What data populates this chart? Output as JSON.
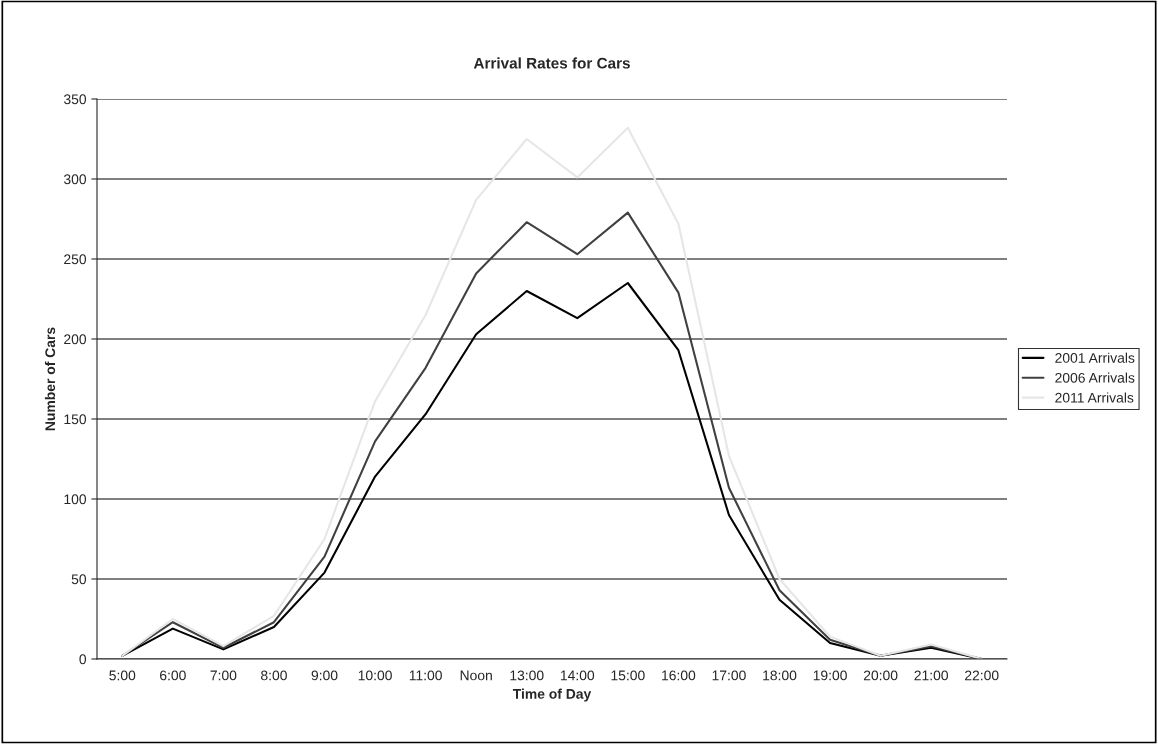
{
  "chart_data": {
    "type": "line",
    "title": "Arrival Rates for Cars",
    "xlabel": "Time of Day",
    "ylabel": "Number of Cars",
    "categories": [
      "5:00",
      "6:00",
      "7:00",
      "8:00",
      "9:00",
      "10:00",
      "11:00",
      "Noon",
      "13:00",
      "14:00",
      "15:00",
      "16:00",
      "17:00",
      "18:00",
      "19:00",
      "20:00",
      "21:00",
      "22:00"
    ],
    "series": [
      {
        "name": "2001 Arrivals",
        "color": "#000000",
        "values": [
          2,
          19,
          6,
          20,
          54,
          114,
          153,
          203,
          230,
          213,
          235,
          193,
          90,
          37,
          10,
          2,
          7,
          0
        ]
      },
      {
        "name": "2006 Arrivals",
        "color": "#404040",
        "values": [
          2,
          23,
          7,
          23,
          64,
          136,
          182,
          241,
          273,
          253,
          279,
          229,
          107,
          43,
          12,
          2,
          8,
          0
        ]
      },
      {
        "name": "2011 Arrivals",
        "color": "#e6e6e6",
        "values": [
          2,
          25,
          8,
          27,
          75,
          161,
          215,
          287,
          325,
          301,
          332,
          272,
          127,
          50,
          14,
          2,
          9,
          0
        ]
      }
    ],
    "ylim": [
      0,
      350
    ],
    "yticks": [
      0,
      50,
      100,
      150,
      200,
      250,
      300,
      350
    ],
    "grid": "y",
    "legend": "right",
    "marker": "none",
    "line_style": "solid"
  }
}
